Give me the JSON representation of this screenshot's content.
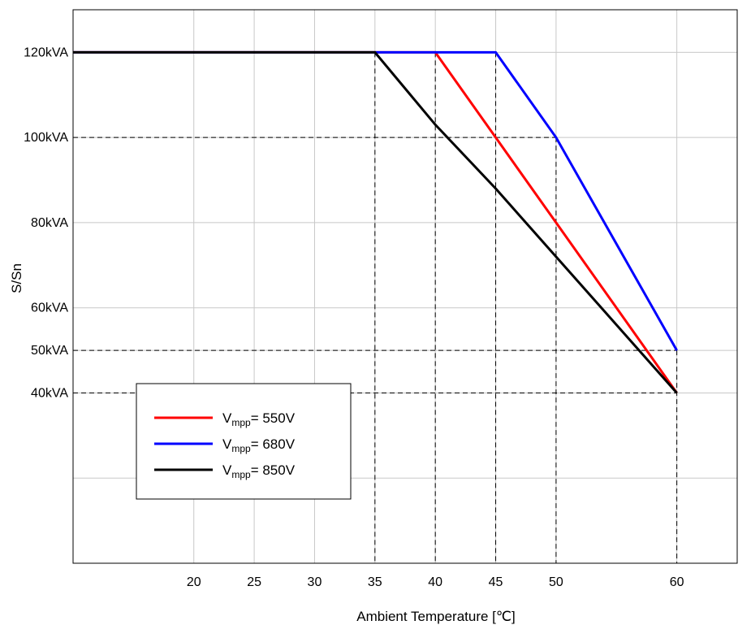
{
  "chart_data": {
    "type": "line",
    "title": "",
    "xlabel": "Ambient Temperature [℃]",
    "ylabel": "S/Sn",
    "xlim": [
      10,
      65
    ],
    "ylim": [
      0,
      130
    ],
    "x_ticks": [
      20,
      25,
      30,
      35,
      40,
      45,
      50,
      60
    ],
    "y_ticks": [
      {
        "value": 120,
        "label": "120kVA"
      },
      {
        "value": 100,
        "label": "100kVA"
      },
      {
        "value": 80,
        "label": "80kVA"
      },
      {
        "value": 60,
        "label": "60kVA"
      },
      {
        "value": 50,
        "label": "50kVA"
      },
      {
        "value": 40,
        "label": "40kVA"
      }
    ],
    "grid": true,
    "legend_position": "lower-left",
    "series": [
      {
        "name_main": "V",
        "name_sub": "mpp",
        "name_rest": "= 550V",
        "color": "#ff0000",
        "points": [
          [
            10,
            120
          ],
          [
            40,
            120
          ],
          [
            45,
            100
          ],
          [
            50,
            80
          ],
          [
            60,
            40
          ]
        ]
      },
      {
        "name_main": "V",
        "name_sub": "mpp",
        "name_rest": "= 680V",
        "color": "#0000ff",
        "points": [
          [
            10,
            120
          ],
          [
            45,
            120
          ],
          [
            50,
            100
          ],
          [
            60,
            50
          ]
        ]
      },
      {
        "name_main": "V",
        "name_sub": "mpp",
        "name_rest": "= 850V",
        "color": "#000000",
        "points": [
          [
            10,
            120
          ],
          [
            35,
            120
          ],
          [
            40,
            103
          ],
          [
            45,
            88
          ],
          [
            50,
            72
          ],
          [
            60,
            40
          ]
        ]
      }
    ],
    "reference_lines": [
      {
        "axis": "x",
        "value": 35,
        "to_y": 120
      },
      {
        "axis": "x",
        "value": 40,
        "to_y": 120
      },
      {
        "axis": "x",
        "value": 45,
        "to_y": 120
      },
      {
        "axis": "x",
        "value": 50,
        "to_y": 100
      },
      {
        "axis": "x",
        "value": 60,
        "to_y": 50
      },
      {
        "axis": "y",
        "value": 100,
        "to_x": 50
      },
      {
        "axis": "y",
        "value": 50,
        "to_x": 60
      },
      {
        "axis": "y",
        "value": 40,
        "to_x": 60
      }
    ]
  }
}
